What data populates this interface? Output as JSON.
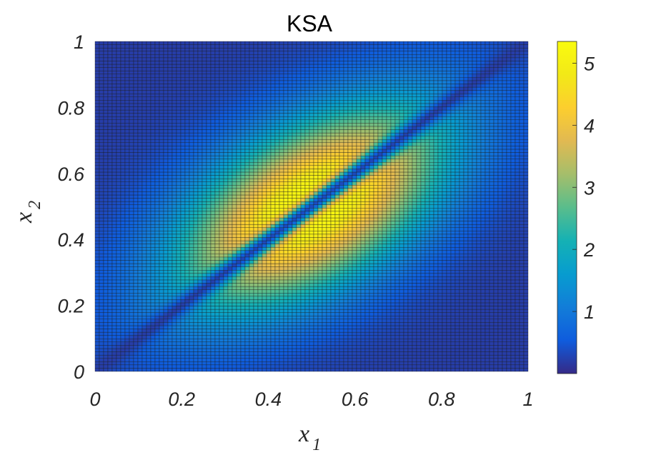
{
  "chart_data": {
    "type": "heatmap",
    "title": "KSA",
    "xlabel": "x",
    "xlabel_sub": "1",
    "ylabel": "x",
    "ylabel_sub": "2",
    "xlim": [
      0,
      1
    ],
    "ylim": [
      0,
      1
    ],
    "xticks": [
      "0",
      "0.2",
      "0.4",
      "0.6",
      "0.8",
      "1"
    ],
    "yticks": [
      "0",
      "0.2",
      "0.4",
      "0.6",
      "0.8",
      "1"
    ],
    "colorbar": {
      "range": [
        0,
        5.35
      ],
      "ticks": [
        "1",
        "2",
        "3",
        "4",
        "5"
      ],
      "colormap": "parula"
    },
    "grid": {
      "nx": 101,
      "ny": 101,
      "cell_edges": true
    },
    "peak_value": 5.35,
    "colors": {
      "cell_edge": "#1a1a1a",
      "axis": "#262626"
    }
  }
}
